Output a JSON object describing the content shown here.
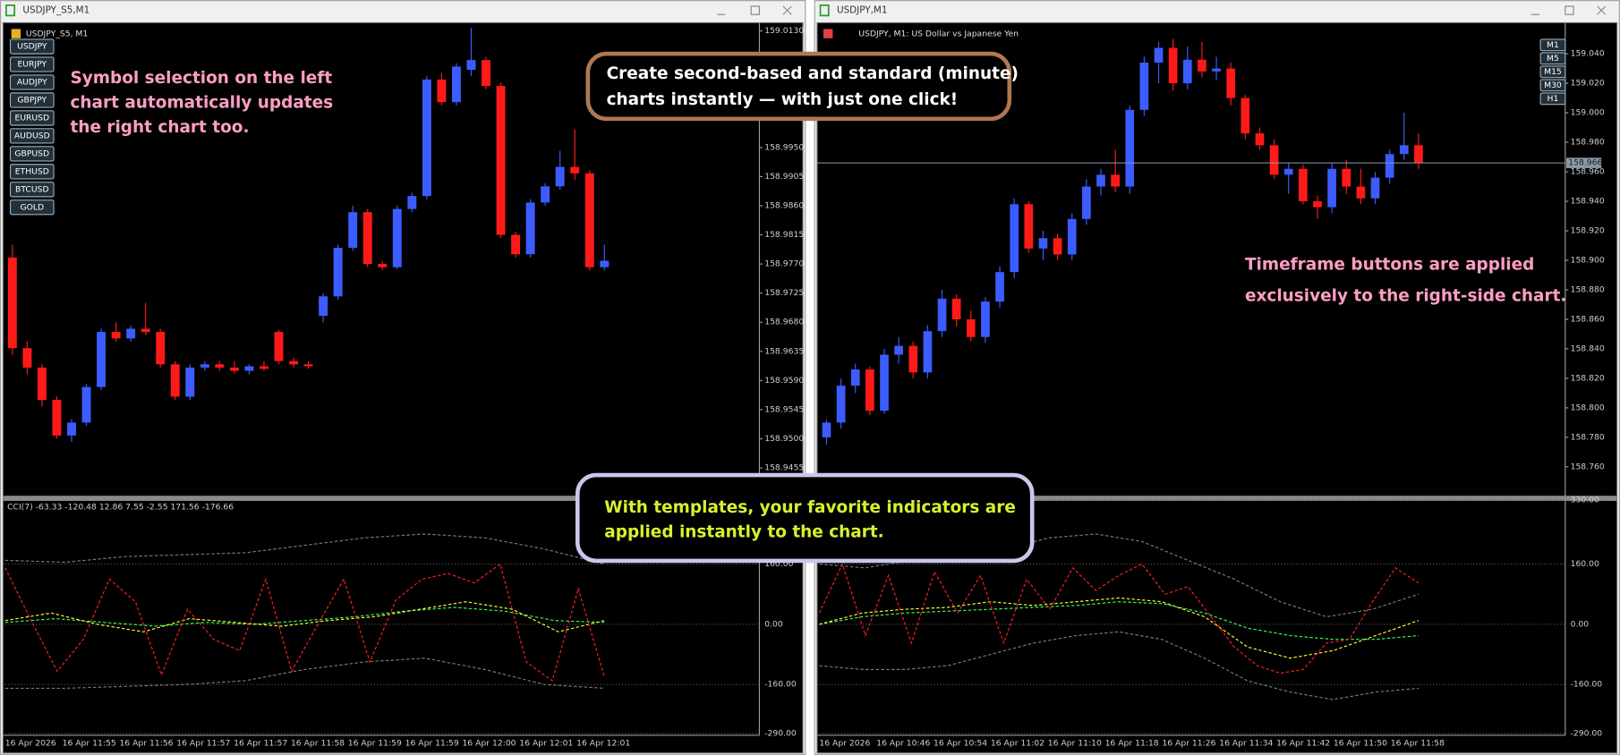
{
  "windows": [
    {
      "title": "USDJPY_S5,M1",
      "chart": {
        "subtitle": "USDJPY_S5, M1",
        "symbols": [
          "USDJPY",
          "EURJPY",
          "AUDJPY",
          "GBPJPY",
          "EURUSD",
          "AUDUSD",
          "GBPUSD",
          "ETHUSD",
          "BTCUSD",
          "GOLD"
        ],
        "ylim": [
          158.9412,
          159.0141
        ],
        "yticks": [
          {
            "value": 159.013,
            "label": "159.0130"
          },
          {
            "value": 158.995,
            "label": "158.9950"
          },
          {
            "value": 158.9905,
            "label": "158.9905"
          },
          {
            "value": 158.986,
            "label": "158.9860"
          },
          {
            "value": 158.9815,
            "label": "158.9815"
          },
          {
            "value": 158.977,
            "label": "158.9770"
          },
          {
            "value": 158.9725,
            "label": "158.9725"
          },
          {
            "value": 158.968,
            "label": "158.9680"
          },
          {
            "value": 158.9635,
            "label": "158.9635"
          },
          {
            "value": 158.959,
            "label": "158.9590"
          },
          {
            "value": 158.9545,
            "label": "158.9545"
          },
          {
            "value": 158.95,
            "label": "158.9500"
          },
          {
            "value": 158.9455,
            "label": "158.9455"
          }
        ],
        "up_color": "#3d5cff",
        "down_color": "#ff1a1a",
        "doji_color": "#19c119",
        "candles": [
          [
            158.978,
            158.98,
            158.963,
            158.964
          ],
          [
            158.964,
            158.965,
            158.96,
            158.961
          ],
          [
            158.961,
            158.9615,
            158.955,
            158.956
          ],
          [
            158.956,
            158.9565,
            158.95,
            158.9505
          ],
          [
            158.9505,
            158.953,
            158.9495,
            158.9525
          ],
          [
            158.9525,
            158.9585,
            158.952,
            158.958
          ],
          [
            158.958,
            158.967,
            158.9575,
            158.9665
          ],
          [
            158.9665,
            158.968,
            158.965,
            158.9655
          ],
          [
            158.9655,
            158.9675,
            158.965,
            158.967
          ],
          [
            158.967,
            158.971,
            158.966,
            158.9665
          ],
          [
            158.9665,
            158.967,
            158.961,
            158.9615
          ],
          [
            158.9615,
            158.962,
            158.956,
            158.9565
          ],
          [
            158.9565,
            158.9615,
            158.956,
            158.961
          ],
          [
            158.961,
            158.962,
            158.9605,
            158.9615
          ],
          [
            158.9615,
            158.962,
            158.9605,
            158.961
          ],
          [
            158.961,
            158.962,
            158.96,
            158.9605
          ],
          [
            158.9605,
            158.9615,
            158.96,
            158.9612
          ],
          [
            158.9612,
            158.962,
            158.9605,
            158.9608
          ],
          [
            158.9665,
            158.9668,
            158.9615,
            158.962
          ],
          [
            158.962,
            158.9625,
            158.961,
            158.9615
          ],
          [
            158.9615,
            158.962,
            158.9608,
            158.9612
          ],
          [
            158.969,
            158.9725,
            158.968,
            158.972
          ],
          [
            158.972,
            158.98,
            158.9715,
            158.9795
          ],
          [
            158.9795,
            158.986,
            158.979,
            158.985
          ],
          [
            158.985,
            158.9855,
            158.9765,
            158.977
          ],
          [
            158.977,
            158.9775,
            158.976,
            158.9765
          ],
          [
            158.9765,
            158.986,
            158.9762,
            158.9855
          ],
          [
            158.9855,
            158.988,
            158.985,
            158.9875
          ],
          [
            158.9875,
            159.006,
            158.987,
            159.0055
          ],
          [
            159.0055,
            159.0065,
            159.0015,
            159.002
          ],
          [
            159.002,
            159.008,
            159.0015,
            159.0075
          ],
          [
            159.007,
            159.0135,
            159.006,
            159.0085
          ],
          [
            159.0085,
            159.009,
            159.004,
            159.0045
          ],
          [
            159.0045,
            159.005,
            158.981,
            158.9815
          ],
          [
            158.9815,
            158.982,
            158.978,
            158.9785
          ],
          [
            158.9785,
            158.987,
            158.978,
            158.9865
          ],
          [
            158.9865,
            158.9895,
            158.986,
            158.989
          ],
          [
            158.989,
            158.9945,
            158.9885,
            158.992
          ],
          [
            158.992,
            158.9978,
            158.99,
            158.991
          ],
          [
            158.991,
            158.9915,
            158.976,
            158.9765
          ],
          [
            158.9765,
            158.98,
            158.976,
            158.9775
          ]
        ]
      },
      "indicator": {
        "label": "CCI(7) -63.33 -120.48 12.86 7.55 -2.55 171.56 -176.66",
        "ylim": [
          -295,
          328
        ],
        "yticks": [
          {
            "value": 160,
            "label": "160.00"
          },
          {
            "value": 0,
            "label": "0.00"
          },
          {
            "value": -160,
            "label": "-160.00"
          },
          {
            "value": -290,
            "label": "-290.00"
          }
        ],
        "series": [
          {
            "color": "#7a7a7a",
            "values": [
              170,
              165,
              180,
              185,
              190,
              210,
              230,
              240,
              230,
              200,
              160
            ]
          },
          {
            "color": "#7a7a7a",
            "values": [
              -170,
              -170,
              -165,
              -160,
              -150,
              -120,
              -100,
              -90,
              -120,
              -160,
              -170
            ]
          },
          {
            "color": "#30ff60",
            "values": [
              5,
              15,
              5,
              -5,
              5,
              0,
              10,
              20,
              35,
              45,
              35,
              10,
              5
            ]
          },
          {
            "color": "#ffff30",
            "values": [
              10,
              30,
              0,
              -20,
              15,
              5,
              -5,
              10,
              20,
              40,
              60,
              40,
              -20,
              10
            ]
          },
          {
            "color": "#ff2020",
            "values": [
              150,
              10,
              -125,
              -40,
              120,
              60,
              -135,
              40,
              -40,
              -70,
              120,
              -125,
              0,
              120,
              -100,
              65,
              120,
              135,
              110,
              160,
              -100,
              -150,
              95,
              -140
            ]
          }
        ]
      },
      "times": [
        "16 Apr 2026",
        "16 Apr 11:55",
        "16 Apr 11:56",
        "16 Apr 11:57",
        "16 Apr 11:57",
        "16 Apr 11:58",
        "16 Apr 11:59",
        "16 Apr 11:59",
        "16 Apr 12:00",
        "16 Apr 12:01",
        "16 Apr 12:01"
      ]
    },
    {
      "title": "USDJPY,M1",
      "chart": {
        "subtitle": "USDJPY, M1:  US Dollar vs Japanese Yen",
        "timeframes": [
          "M1",
          "M5",
          "M15",
          "M30",
          "H1"
        ],
        "current_price": 158.966,
        "ylim": [
          158.7404,
          159.0603
        ],
        "yticks": [
          {
            "value": 159.04,
            "label": "159.040"
          },
          {
            "value": 159.02,
            "label": "159.020"
          },
          {
            "value": 159,
            "label": "159.000"
          },
          {
            "value": 158.98,
            "label": "158.980"
          },
          {
            "value": 158.96,
            "label": "158.960"
          },
          {
            "value": 158.94,
            "label": "158.940"
          },
          {
            "value": 158.92,
            "label": "158.920"
          },
          {
            "value": 158.9,
            "label": "158.900"
          },
          {
            "value": 158.88,
            "label": "158.880"
          },
          {
            "value": 158.86,
            "label": "158.860"
          },
          {
            "value": 158.84,
            "label": "158.840"
          },
          {
            "value": 158.82,
            "label": "158.820"
          },
          {
            "value": 158.8,
            "label": "158.800"
          },
          {
            "value": 158.78,
            "label": "158.780"
          },
          {
            "value": 158.76,
            "label": "158.760"
          }
        ],
        "up_color": "#3d5cff",
        "down_color": "#ff1a1a",
        "doji_color": "#19c119",
        "candles": [
          [
            158.78,
            158.792,
            158.775,
            158.79
          ],
          [
            158.79,
            158.82,
            158.786,
            158.815
          ],
          [
            158.815,
            158.83,
            158.81,
            158.826
          ],
          [
            158.826,
            158.828,
            158.795,
            158.798
          ],
          [
            158.798,
            158.84,
            158.796,
            158.836
          ],
          [
            158.836,
            158.848,
            158.83,
            158.842
          ],
          [
            158.842,
            158.845,
            158.82,
            158.824
          ],
          [
            158.824,
            158.856,
            158.82,
            158.852
          ],
          [
            158.852,
            158.88,
            158.848,
            158.874
          ],
          [
            158.874,
            158.877,
            158.855,
            158.86
          ],
          [
            158.86,
            158.866,
            158.845,
            158.848
          ],
          [
            158.848,
            158.875,
            158.844,
            158.872
          ],
          [
            158.872,
            158.896,
            158.868,
            158.892
          ],
          [
            158.892,
            158.942,
            158.888,
            158.938
          ],
          [
            158.938,
            158.94,
            158.905,
            158.908
          ],
          [
            158.908,
            158.92,
            158.9,
            158.915
          ],
          [
            158.915,
            158.918,
            158.9,
            158.904
          ],
          [
            158.904,
            158.932,
            158.9,
            158.928
          ],
          [
            158.928,
            158.955,
            158.924,
            158.95
          ],
          [
            158.95,
            158.962,
            158.944,
            158.958
          ],
          [
            158.958,
            158.975,
            158.946,
            158.95
          ],
          [
            158.95,
            159.005,
            158.945,
            159.002
          ],
          [
            159.002,
            159.038,
            158.998,
            159.034
          ],
          [
            159.034,
            159.048,
            159.02,
            159.044
          ],
          [
            159.044,
            159.05,
            159.015,
            159.02
          ],
          [
            159.02,
            159.045,
            159.016,
            159.036
          ],
          [
            159.036,
            159.048,
            159.024,
            159.028
          ],
          [
            159.028,
            159.038,
            159.022,
            159.03
          ],
          [
            159.03,
            159.034,
            159.005,
            159.01
          ],
          [
            159.01,
            159.012,
            158.982,
            158.986
          ],
          [
            158.986,
            158.99,
            158.975,
            158.978
          ],
          [
            158.978,
            158.982,
            158.955,
            158.958
          ],
          [
            158.958,
            158.966,
            158.945,
            158.962
          ],
          [
            158.962,
            158.965,
            158.938,
            158.94
          ],
          [
            158.94,
            158.944,
            158.928,
            158.936
          ],
          [
            158.936,
            158.966,
            158.932,
            158.962
          ],
          [
            158.962,
            158.968,
            158.945,
            158.95
          ],
          [
            158.95,
            158.962,
            158.938,
            158.942
          ],
          [
            158.942,
            158.96,
            158.938,
            158.956
          ],
          [
            158.956,
            158.975,
            158.952,
            158.972
          ],
          [
            158.972,
            159,
            158.968,
            158.978
          ],
          [
            158.978,
            158.986,
            158.962,
            158.966
          ]
        ]
      },
      "indicator": {
        "ylim": [
          -295,
          328
        ],
        "yticks": [
          {
            "value": 330,
            "label": "330.00"
          },
          {
            "value": 160,
            "label": "160.00"
          },
          {
            "value": 0,
            "label": "0.00"
          },
          {
            "value": -160,
            "label": "-160.00"
          },
          {
            "value": -290,
            "label": "-290.00"
          }
        ],
        "series": [
          {
            "color": "#7a7a7a",
            "values": [
              160,
              150,
              170,
              190,
              200,
              230,
              240,
              220,
              170,
              120,
              60,
              20,
              40,
              80
            ]
          },
          {
            "color": "#7a7a7a",
            "values": [
              -110,
              -120,
              -120,
              -110,
              -80,
              -50,
              -30,
              -20,
              -40,
              -90,
              -150,
              -180,
              -200,
              -180,
              -170
            ]
          },
          {
            "color": "#30ff60",
            "values": [
              0,
              20,
              30,
              35,
              40,
              45,
              50,
              60,
              55,
              30,
              -10,
              -30,
              -40,
              -40,
              -30
            ]
          },
          {
            "color": "#ffff30",
            "values": [
              0,
              30,
              40,
              45,
              60,
              50,
              60,
              70,
              60,
              20,
              -60,
              -90,
              -70,
              -30,
              10
            ]
          },
          {
            "color": "#ff2020",
            "values": [
              30,
              160,
              -30,
              130,
              -50,
              140,
              30,
              130,
              -50,
              120,
              40,
              150,
              90,
              130,
              160,
              80,
              100,
              20,
              -60,
              -110,
              -130,
              -120,
              -50,
              -40,
              60,
              150,
              110
            ]
          }
        ]
      },
      "times": [
        "16 Apr 2026",
        "16 Apr 10:46",
        "16 Apr 10:54",
        "16 Apr 11:02",
        "16 Apr 11:10",
        "16 Apr 11:18",
        "16 Apr 11:26",
        "16 Apr 11:34",
        "16 Apr 11:42",
        "16 Apr 11:50",
        "16 Apr 11:58"
      ]
    }
  ],
  "annotations": [
    {
      "lines": [
        "Symbol selection on the left",
        "chart automatically updates",
        "the right chart too."
      ]
    },
    {
      "lines": [
        "Create second-based and standard (minute)",
        "charts instantly — with just one click!"
      ]
    },
    {
      "lines": [
        "Timeframe buttons are applied",
        "exclusively to the right-side chart."
      ]
    },
    {
      "lines": [
        "With templates, your favorite indicators are",
        "applied instantly to the chart."
      ]
    }
  ]
}
